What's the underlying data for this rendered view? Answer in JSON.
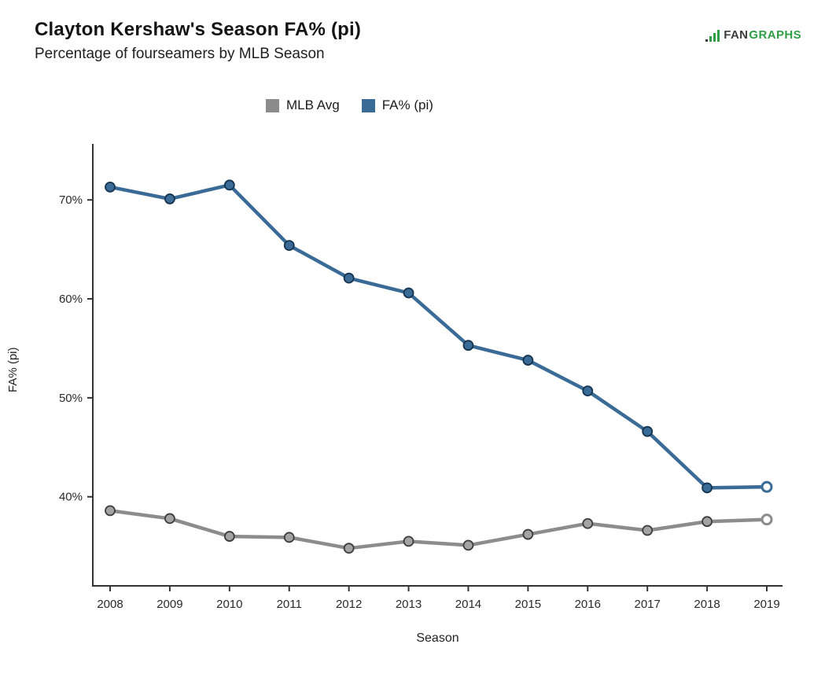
{
  "header": {
    "title": "Clayton Kershaw's Season FA% (pi)",
    "subtitle": "Percentage of fourseamers by MLB Season"
  },
  "logo": {
    "fan": "FAN",
    "graphs": "GRAPHS",
    "bar_color": "#2f9e44"
  },
  "legend": [
    {
      "label": "MLB Avg",
      "color": "#8c8c8c"
    },
    {
      "label": "FA% (pi)",
      "color": "#3a6b96"
    }
  ],
  "chart_data": {
    "type": "line",
    "title": "Clayton Kershaw's Season FA% (pi)",
    "subtitle": "Percentage of fourseamers by MLB Season",
    "x": [
      2008,
      2009,
      2010,
      2011,
      2012,
      2013,
      2014,
      2015,
      2016,
      2017,
      2018,
      2019
    ],
    "series": [
      {
        "name": "MLB Avg",
        "color": "#8c8c8c",
        "marker_fill": "#a3a3a3",
        "marker_stroke": "#3d3d3d",
        "open_last": true,
        "values": [
          38.6,
          37.8,
          36.0,
          35.9,
          34.8,
          35.5,
          35.1,
          36.2,
          37.3,
          36.6,
          37.5,
          37.7
        ]
      },
      {
        "name": "FA% (pi)",
        "color": "#3a6b96",
        "marker_fill": "#3a6b96",
        "marker_stroke": "#16334f",
        "open_last": true,
        "values": [
          71.3,
          70.1,
          71.5,
          65.4,
          62.1,
          60.6,
          55.3,
          53.8,
          50.7,
          46.6,
          40.9,
          41.0
        ]
      }
    ],
    "xlabel": "Season",
    "ylabel": "FA% (pi)",
    "yticks": [
      40,
      50,
      60,
      70
    ],
    "ytick_suffix": "%",
    "ylim": [
      31,
      75.5
    ],
    "grid": false,
    "legend_position": "top",
    "axis_color": "#333333"
  }
}
